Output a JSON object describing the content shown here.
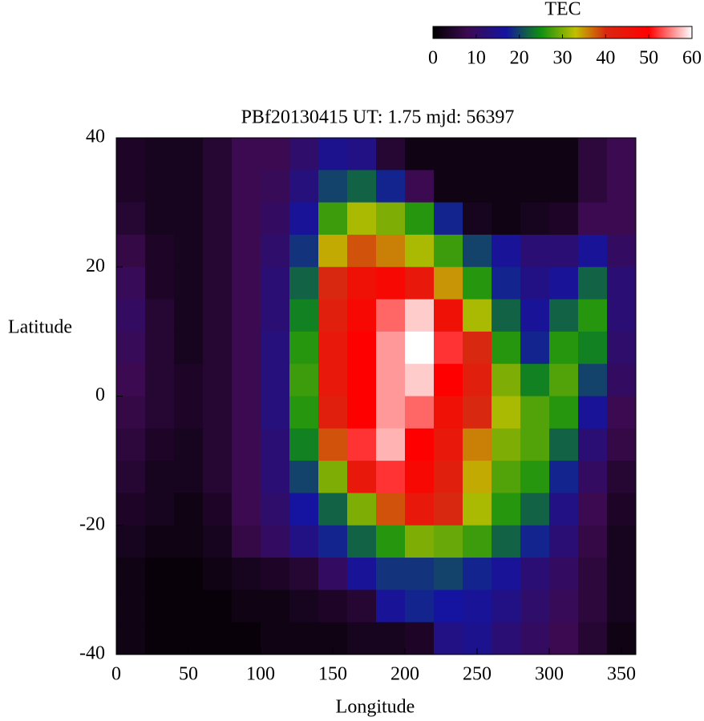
{
  "chart_data": {
    "type": "heatmap",
    "title": "PBf20130415  UT: 1.75  mjd: 56397",
    "x_label": "Longitude",
    "y_label": "Latitude",
    "colorbar_label": "TEC",
    "x": [
      10,
      30,
      50,
      70,
      90,
      110,
      130,
      150,
      170,
      190,
      210,
      230,
      250,
      270,
      290,
      310,
      330,
      350
    ],
    "y": [
      37.5,
      32.5,
      27.5,
      22.5,
      17.5,
      12.5,
      7.5,
      2.5,
      -2.5,
      -7.5,
      -12.5,
      -17.5,
      -22.5,
      -27.5,
      -32.5,
      -37.5
    ],
    "z": [
      [
        4,
        3,
        3,
        5,
        8,
        8,
        11,
        15,
        14,
        5,
        2,
        2,
        2,
        2,
        2,
        2,
        6,
        8
      ],
      [
        4,
        3,
        3,
        5,
        8,
        9,
        13,
        20,
        22,
        18,
        8,
        2,
        2,
        2,
        2,
        2,
        6,
        8
      ],
      [
        5,
        3,
        3,
        5,
        8,
        10,
        16,
        27,
        32,
        30,
        26,
        18,
        3,
        2,
        3,
        4,
        8,
        8
      ],
      [
        7,
        4,
        3,
        5,
        8,
        11,
        19,
        34,
        38,
        36,
        32,
        27,
        20,
        16,
        12,
        12,
        16,
        10
      ],
      [
        9,
        4,
        3,
        5,
        8,
        12,
        22,
        40,
        46,
        48,
        44,
        35,
        26,
        18,
        14,
        16,
        22,
        12
      ],
      [
        10,
        5,
        3,
        5,
        8,
        12,
        24,
        42,
        48,
        54,
        58,
        46,
        32,
        22,
        16,
        22,
        26,
        12
      ],
      [
        9,
        5,
        3,
        5,
        8,
        13,
        26,
        44,
        50,
        56,
        60,
        52,
        40,
        26,
        18,
        26,
        24,
        11
      ],
      [
        8,
        5,
        4,
        5,
        8,
        13,
        27,
        44,
        50,
        56,
        58,
        50,
        42,
        30,
        24,
        28,
        20,
        10
      ],
      [
        7,
        5,
        4,
        5,
        8,
        13,
        26,
        42,
        50,
        56,
        54,
        46,
        40,
        32,
        28,
        26,
        16,
        8
      ],
      [
        6,
        4,
        3,
        5,
        8,
        12,
        24,
        38,
        52,
        57,
        50,
        44,
        36,
        30,
        28,
        22,
        12,
        7
      ],
      [
        5,
        3,
        3,
        5,
        8,
        12,
        20,
        30,
        44,
        52,
        48,
        42,
        34,
        28,
        26,
        18,
        10,
        5
      ],
      [
        4,
        3,
        2,
        4,
        8,
        11,
        17,
        22,
        30,
        38,
        44,
        40,
        32,
        26,
        22,
        14,
        8,
        4
      ],
      [
        3,
        2,
        2,
        3,
        7,
        10,
        14,
        18,
        22,
        26,
        30,
        29,
        27,
        22,
        18,
        12,
        7,
        3
      ],
      [
        2,
        1,
        1,
        2,
        3,
        4,
        5,
        10,
        16,
        19,
        19,
        20,
        18,
        16,
        12,
        10,
        6,
        3
      ],
      [
        2,
        1,
        1,
        1,
        2,
        2,
        3,
        4,
        5,
        16,
        18,
        17,
        16,
        14,
        11,
        9,
        6,
        3
      ],
      [
        2,
        1,
        1,
        1,
        1,
        2,
        2,
        2,
        3,
        3,
        4,
        14,
        15,
        12,
        10,
        8,
        5,
        2
      ]
    ],
    "colorscale": [
      [
        0,
        "#000000"
      ],
      [
        8,
        "#3c0a50"
      ],
      [
        17,
        "#1414a0"
      ],
      [
        25,
        "#109010"
      ],
      [
        33,
        "#c0c000"
      ],
      [
        40,
        "#d82810"
      ],
      [
        50,
        "#ff0000"
      ],
      [
        60,
        "#ffffff"
      ]
    ],
    "xlim": [
      0,
      360
    ],
    "ylim": [
      -40,
      40
    ],
    "xticks": [
      0,
      50,
      100,
      150,
      200,
      250,
      300,
      350
    ],
    "yticks": [
      -40,
      -20,
      0,
      20,
      40
    ],
    "clim": [
      0,
      60
    ],
    "cticks": [
      0,
      10,
      20,
      30,
      40,
      50,
      60
    ]
  }
}
